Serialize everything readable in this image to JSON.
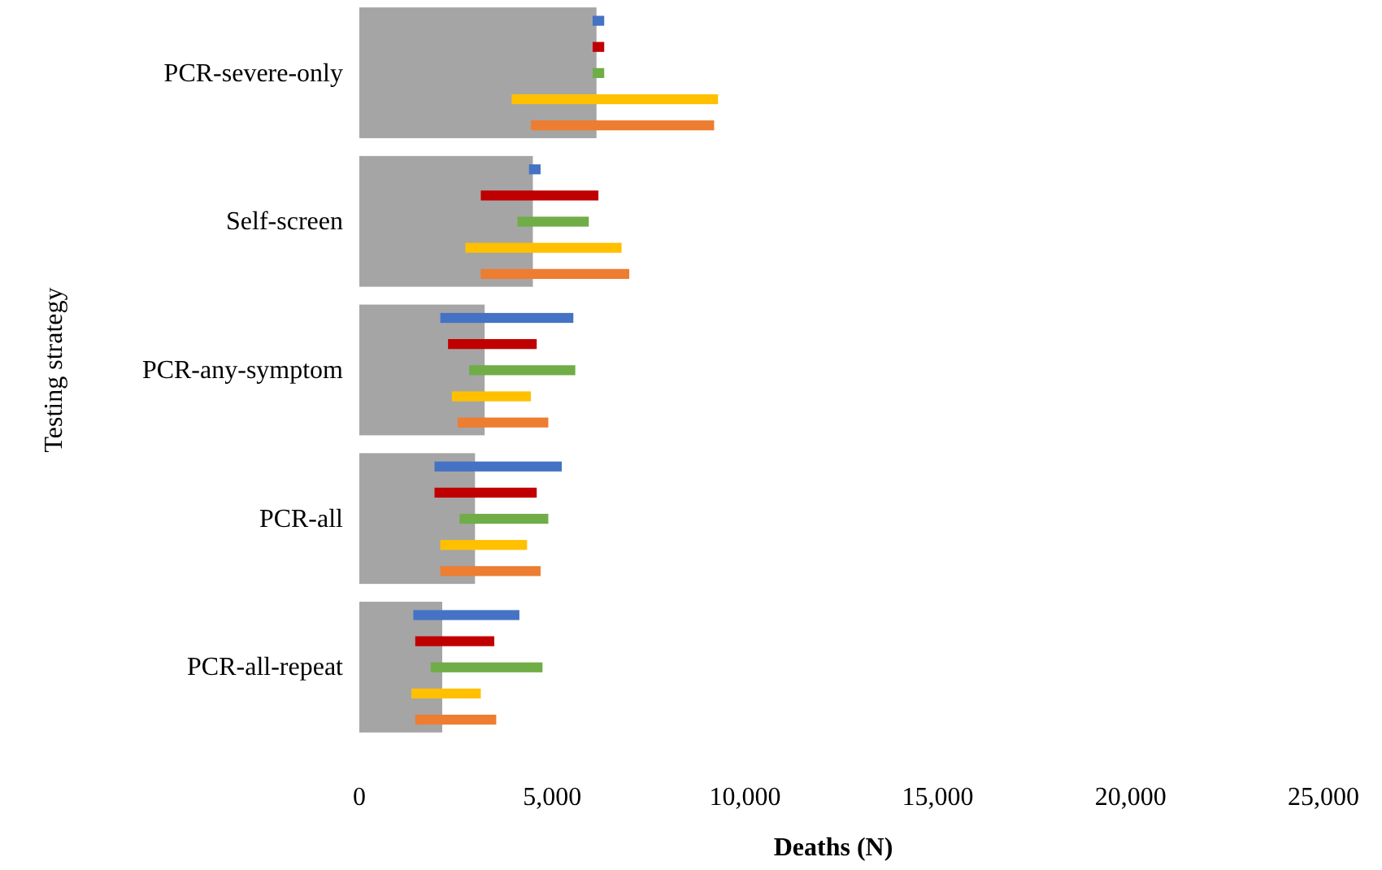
{
  "chart_data": {
    "type": "bar",
    "orientation": "horizontal",
    "ylabel": "Testing strategy",
    "xlabel": "Deaths (N)",
    "categories": [
      "PCR-severe-only",
      "Self-screen",
      "PCR-any-symptom",
      "PCR-all",
      "PCR-all-repeat"
    ],
    "xlim": [
      0,
      25000
    ],
    "xticks": [
      {
        "value": 0,
        "label": "0"
      },
      {
        "value": 5000,
        "label": "5,000"
      },
      {
        "value": 10000,
        "label": "10,000"
      },
      {
        "value": 15000,
        "label": "15,000"
      },
      {
        "value": 20000,
        "label": "20,000"
      },
      {
        "value": 25000,
        "label": "25,000"
      }
    ],
    "grid": false,
    "series": [
      {
        "color": "#a5a5a5",
        "values": [
          6150,
          4500,
          3250,
          3000,
          2150
        ]
      },
      {
        "color": "#4472c4",
        "base": [
          6050,
          4400,
          2100,
          1950,
          1400
        ],
        "values": [
          300,
          300,
          3450,
          3300,
          2750
        ]
      },
      {
        "color": "#c00000",
        "base": [
          6050,
          3150,
          2300,
          1950,
          1450
        ],
        "values": [
          300,
          3050,
          2300,
          2650,
          2050
        ]
      },
      {
        "color": "#70ad47",
        "base": [
          6050,
          4100,
          2850,
          2600,
          1850
        ],
        "values": [
          300,
          1850,
          2750,
          2300,
          2900
        ]
      },
      {
        "color": "#ffc000",
        "base": [
          3950,
          2750,
          2400,
          2100,
          1350
        ],
        "values": [
          5350,
          4050,
          2050,
          2250,
          1800
        ]
      },
      {
        "color": "#ed7d31",
        "base": [
          4450,
          3150,
          2550,
          2100,
          1450
        ],
        "values": [
          4750,
          3850,
          2350,
          2600,
          2100
        ]
      }
    ]
  }
}
